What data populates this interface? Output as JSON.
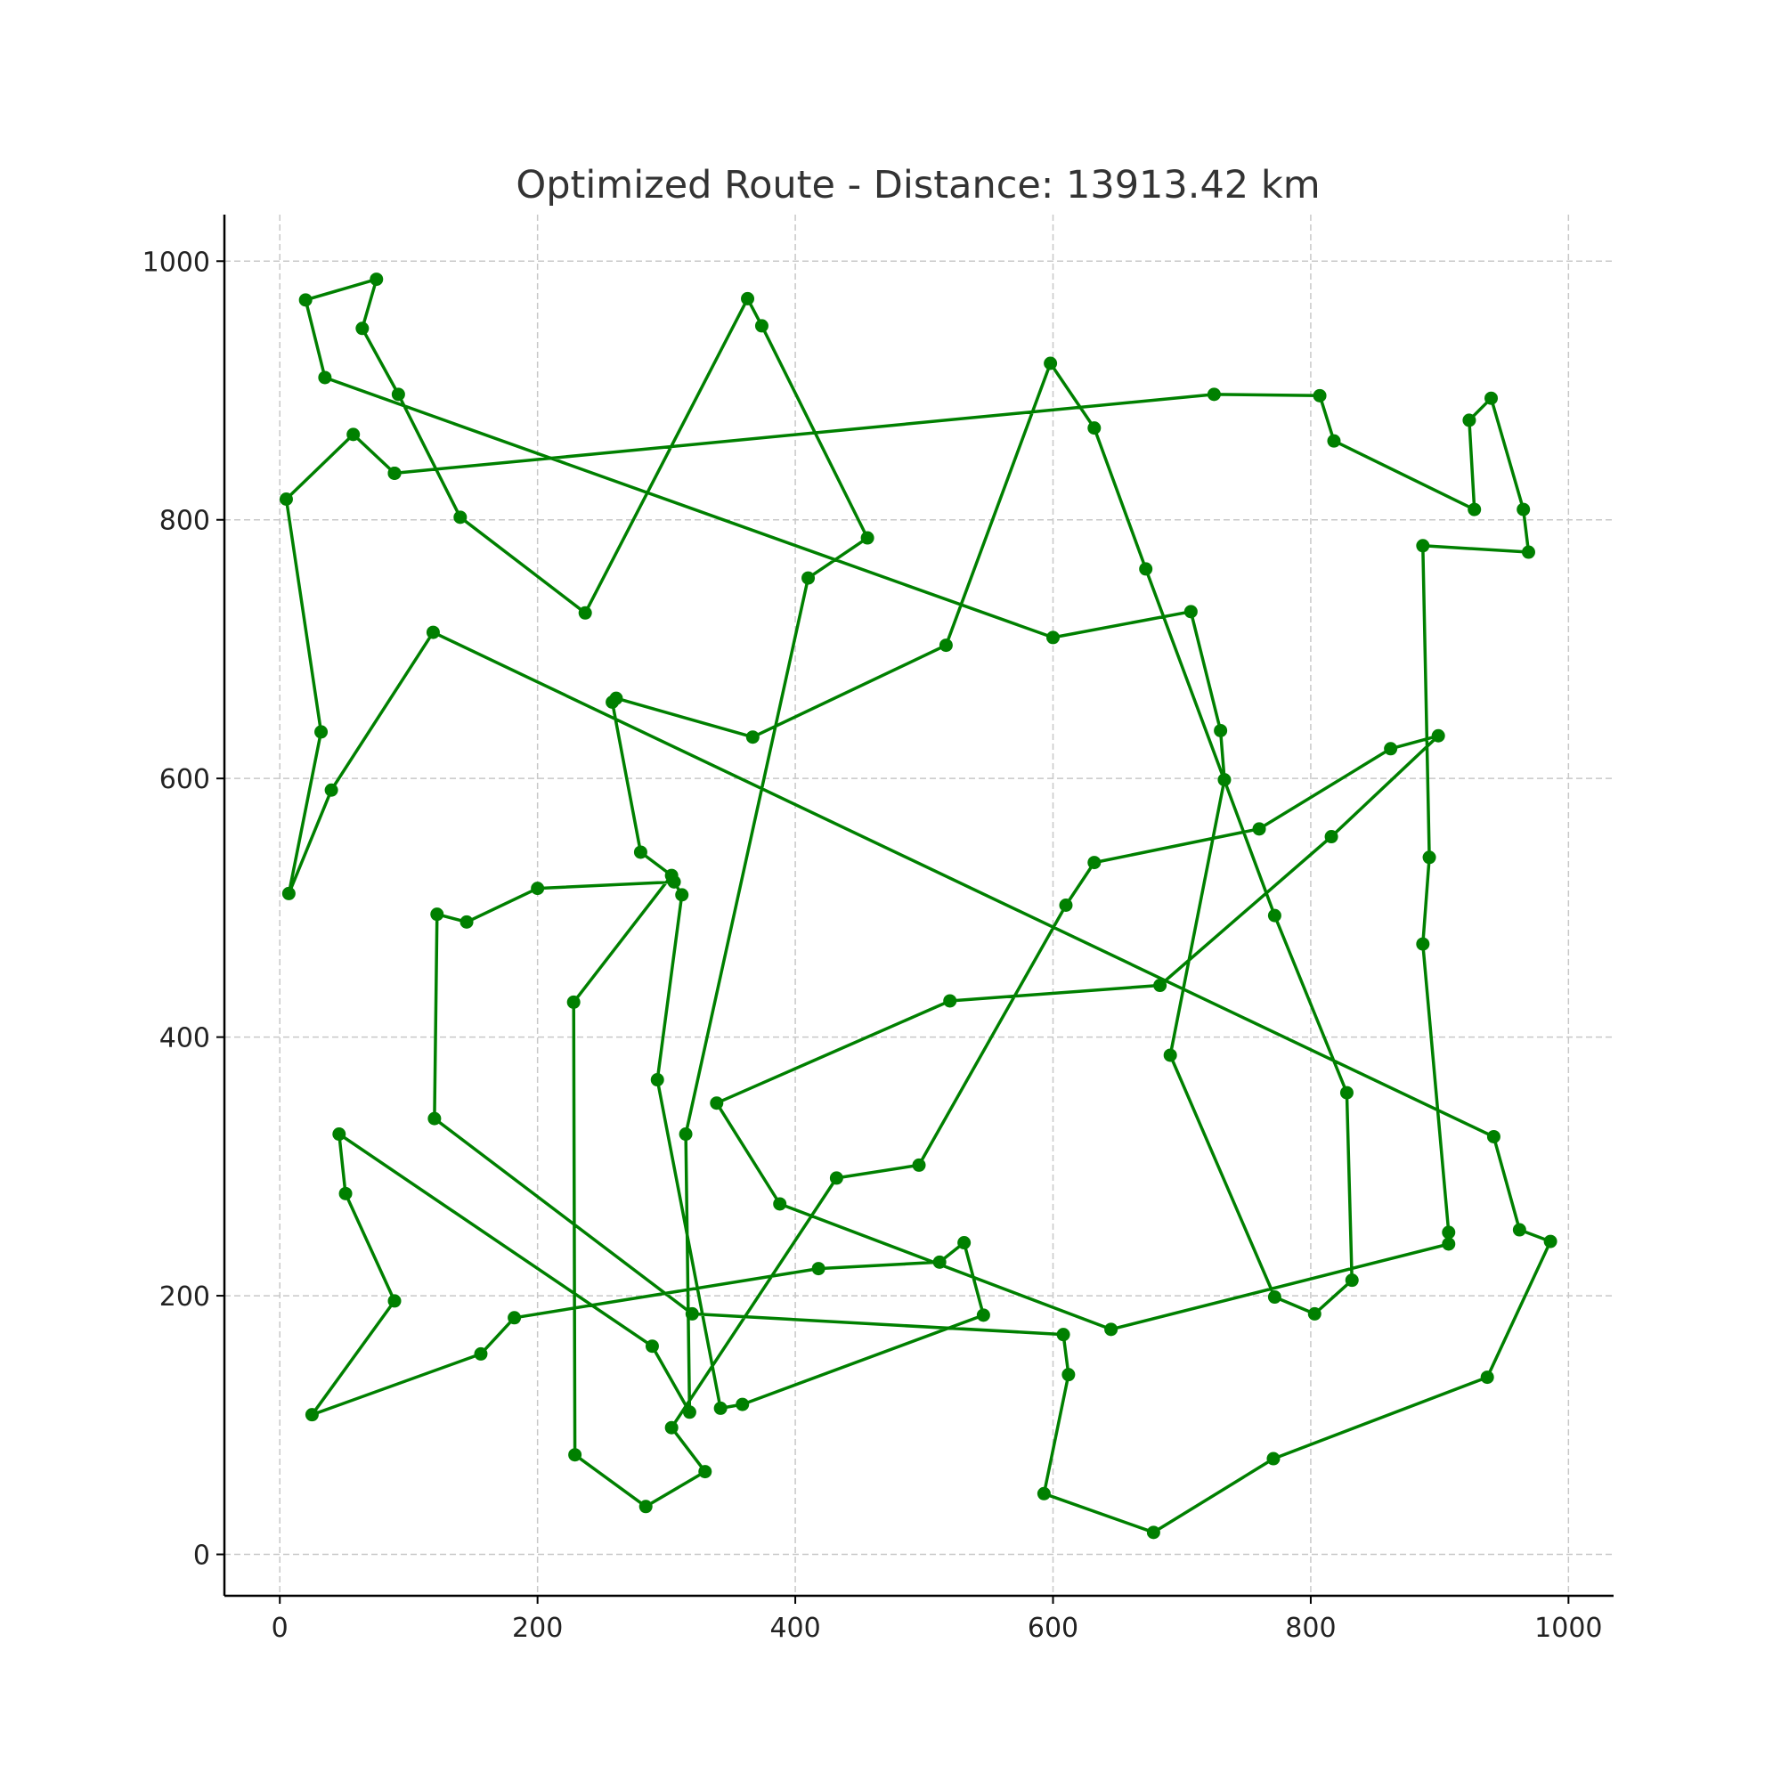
{
  "chart_data": {
    "type": "line",
    "title": "Optimized Route - Distance: 13913.42 km",
    "xlabel": "",
    "ylabel": "",
    "xlim": [
      -43,
      1035
    ],
    "ylim": [
      -32,
      1036
    ],
    "xticks": [
      0,
      200,
      400,
      600,
      800,
      1000
    ],
    "yticks": [
      0,
      200,
      400,
      600,
      800,
      1000
    ],
    "xtick_labels": [
      "0",
      "200",
      "400",
      "600",
      "800",
      "1000"
    ],
    "ytick_labels": [
      "0",
      "200",
      "400",
      "600",
      "800",
      "1000"
    ],
    "grid": true,
    "grid_style": "dashed",
    "line_color": "#008000",
    "marker": "circle",
    "series": [
      {
        "points": [
          [
            89,
            836
          ],
          [
            57,
            866
          ],
          [
            5,
            816
          ],
          [
            32,
            636
          ],
          [
            7,
            511
          ],
          [
            40,
            591
          ],
          [
            119,
            713
          ],
          [
            942,
            323
          ],
          [
            962,
            251
          ],
          [
            986,
            242
          ],
          [
            937,
            137
          ],
          [
            771,
            74
          ],
          [
            678,
            17
          ],
          [
            593,
            47
          ],
          [
            612,
            139
          ],
          [
            608,
            170
          ],
          [
            320,
            186
          ],
          [
            120,
            337
          ],
          [
            122,
            495
          ],
          [
            145,
            489
          ],
          [
            200,
            515
          ],
          [
            306,
            520
          ],
          [
            312,
            510
          ],
          [
            293,
            367
          ],
          [
            342,
            113
          ],
          [
            359,
            116
          ],
          [
            546,
            185
          ],
          [
            531,
            241
          ],
          [
            512,
            226
          ],
          [
            418,
            221
          ],
          [
            182,
            183
          ],
          [
            156,
            155
          ],
          [
            25,
            108
          ],
          [
            89,
            196
          ],
          [
            51,
            279
          ],
          [
            46,
            325
          ],
          [
            289,
            161
          ],
          [
            318,
            110
          ],
          [
            315,
            325
          ],
          [
            410,
            755
          ],
          [
            456,
            786
          ],
          [
            374,
            950
          ],
          [
            363,
            971
          ],
          [
            237,
            728
          ],
          [
            140,
            802
          ],
          [
            92,
            897
          ],
          [
            64,
            948
          ],
          [
            75,
            986
          ],
          [
            20,
            970
          ],
          [
            35,
            910
          ],
          [
            600,
            709
          ],
          [
            707,
            729
          ],
          [
            730,
            637
          ],
          [
            733,
            599
          ],
          [
            691,
            386
          ],
          [
            772,
            199
          ],
          [
            803,
            186
          ],
          [
            832,
            212
          ],
          [
            828,
            357
          ],
          [
            772,
            494
          ],
          [
            672,
            762
          ],
          [
            632,
            871
          ],
          [
            598,
            921
          ],
          [
            517,
            703
          ],
          [
            367,
            632
          ],
          [
            261,
            662
          ],
          [
            258,
            659
          ],
          [
            280,
            543
          ],
          [
            304,
            525
          ],
          [
            228,
            427
          ],
          [
            229,
            77
          ],
          [
            284,
            37
          ],
          [
            330,
            64
          ],
          [
            304,
            98
          ],
          [
            432,
            291
          ],
          [
            496,
            301
          ],
          [
            610,
            502
          ],
          [
            632,
            535
          ],
          [
            760,
            561
          ],
          [
            862,
            623
          ],
          [
            899,
            633
          ],
          [
            816,
            555
          ],
          [
            683,
            440
          ],
          [
            520,
            428
          ],
          [
            339,
            349
          ],
          [
            388,
            271
          ],
          [
            645,
            174
          ],
          [
            907,
            240
          ],
          [
            907,
            249
          ],
          [
            887,
            472
          ],
          [
            892,
            539
          ],
          [
            887,
            780
          ],
          [
            969,
            775
          ],
          [
            965,
            808
          ],
          [
            940,
            894
          ],
          [
            923,
            877
          ],
          [
            927,
            808
          ],
          [
            818,
            861
          ],
          [
            807,
            896
          ],
          [
            725,
            897
          ],
          [
            89,
            836
          ]
        ]
      }
    ]
  }
}
